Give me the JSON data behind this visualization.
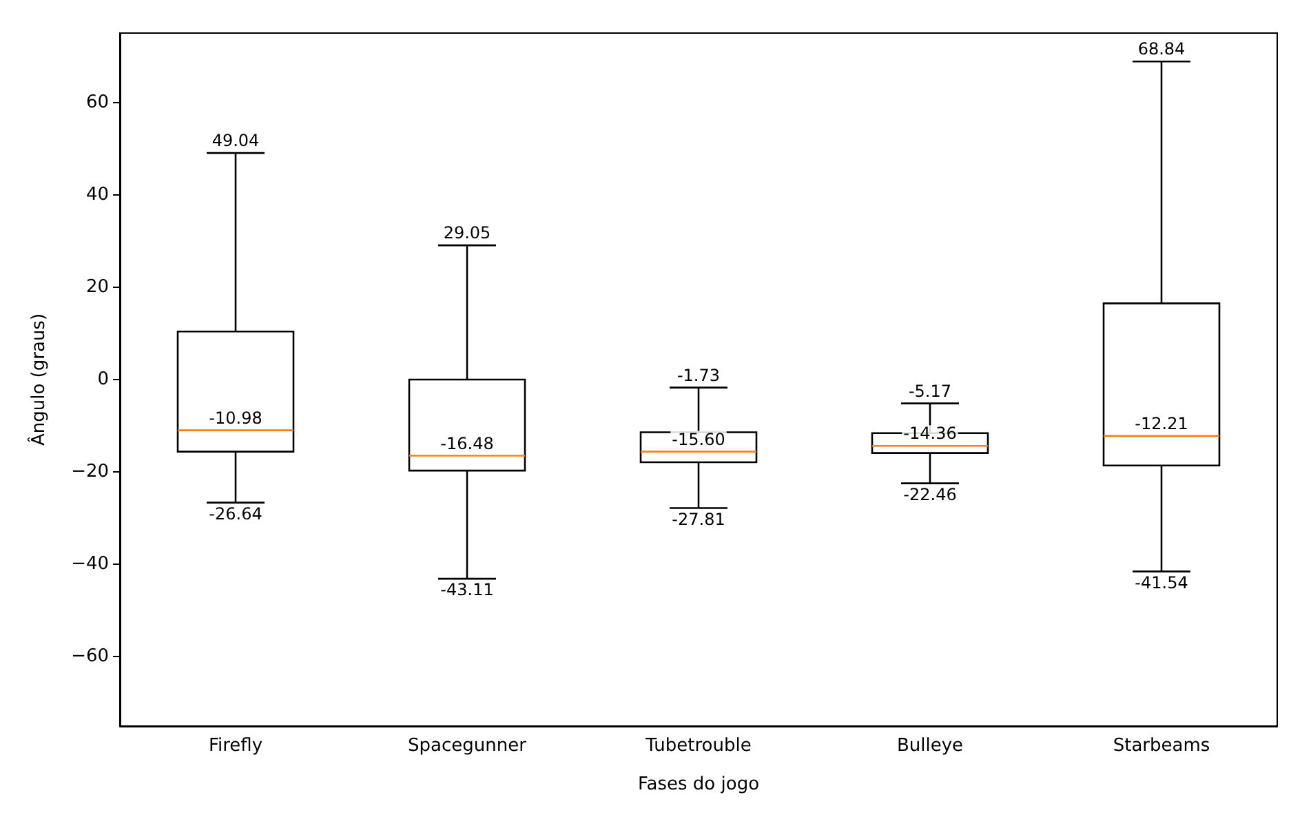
{
  "chart_data": {
    "type": "box",
    "xlabel": "Fases do jogo",
    "ylabel": "Ângulo (graus)",
    "categories": [
      "Firefly",
      "Spacegunner",
      "Tubetrouble",
      "Bulleye",
      "Starbeams"
    ],
    "series": [
      {
        "color": "#000000",
        "boxes": [
          {
            "low": -26.64,
            "q1": -15.6,
            "median": -10.98,
            "q3": 10.4,
            "high": 49.04
          },
          {
            "low": -43.11,
            "q1": -19.7,
            "median": -16.48,
            "q3": 0.0,
            "high": 29.05
          },
          {
            "low": -27.81,
            "q1": -17.9,
            "median": -15.6,
            "q3": -11.4,
            "high": -1.73
          },
          {
            "low": -22.46,
            "q1": -15.9,
            "median": -14.36,
            "q3": -11.6,
            "high": -5.17
          },
          {
            "low": -41.54,
            "q1": -18.6,
            "median": -12.21,
            "q3": 16.5,
            "high": 68.84
          }
        ]
      }
    ],
    "annotations": [
      {
        "text": "49.04",
        "x": "Firefly",
        "y": 49.04
      },
      {
        "text": "-10.98",
        "x": "Firefly",
        "y": -10.98
      },
      {
        "text": "-26.64",
        "x": "Firefly",
        "y": -26.64
      },
      {
        "text": "29.05",
        "x": "Spacegunner",
        "y": 29.05
      },
      {
        "text": "-16.48",
        "x": "Spacegunner",
        "y": -16.48
      },
      {
        "text": "-43.11",
        "x": "Spacegunner",
        "y": -43.11
      },
      {
        "text": "-1.73",
        "x": "Tubetrouble",
        "y": -1.73
      },
      {
        "text": "-15.60",
        "x": "Tubetrouble",
        "y": -15.6
      },
      {
        "text": "-27.81",
        "x": "Tubetrouble",
        "y": -27.81
      },
      {
        "text": "-5.17",
        "x": "Bulleye",
        "y": -5.17
      },
      {
        "text": "-14.36",
        "x": "Bulleye",
        "y": -14.36
      },
      {
        "text": "-22.46",
        "x": "Bulleye",
        "y": -22.46
      },
      {
        "text": "68.84",
        "x": "Starbeams",
        "y": 68.84
      },
      {
        "text": "-12.21",
        "x": "Starbeams",
        "y": -12.21
      },
      {
        "text": "-41.54",
        "x": "Starbeams",
        "y": -41.54
      }
    ],
    "ylim": [
      -75,
      75
    ],
    "yticks": [
      {
        "value": -60,
        "label": "−60"
      },
      {
        "value": -40,
        "label": "−40"
      },
      {
        "value": -20,
        "label": "−20"
      },
      0,
      20,
      40,
      60
    ]
  }
}
